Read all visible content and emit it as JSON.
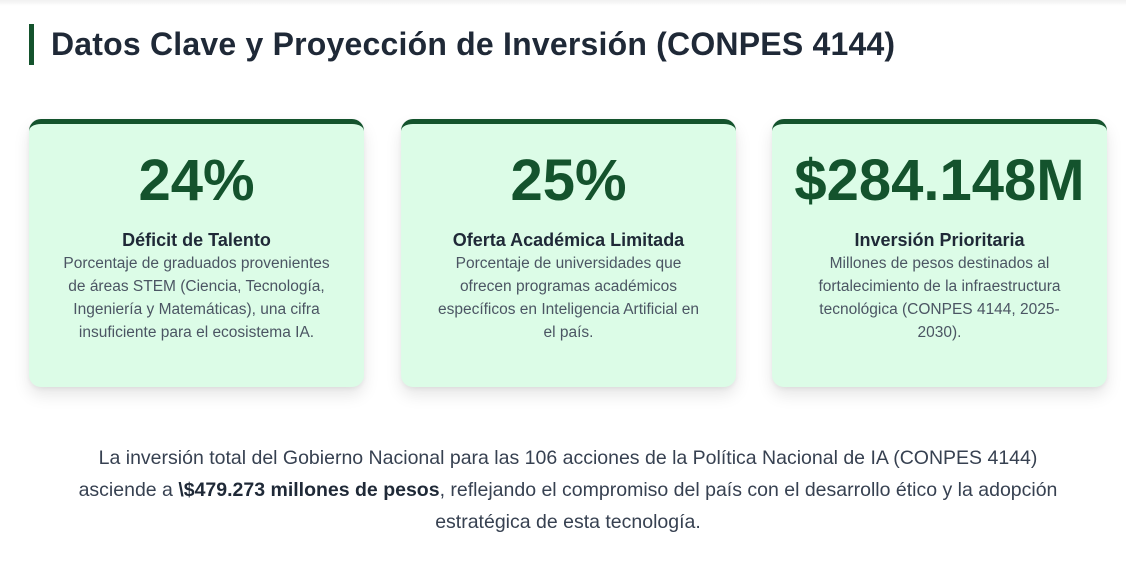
{
  "header": {
    "title": "Datos Clave y Proyección de Inversión (CONPES 4144)"
  },
  "cards": [
    {
      "value": "24%",
      "label": "Déficit de Talento",
      "description": "Porcentaje de graduados provenientes de áreas STEM (Ciencia, Tecnología, Ingeniería y Matemáticas), una cifra insuficiente para el ecosistema IA."
    },
    {
      "value": "25%",
      "label": "Oferta Académica Limitada",
      "description": "Porcentaje de universidades que ofrecen programas académicos específicos en Inteligencia Artificial en el país."
    },
    {
      "value": "$284.148M",
      "label": "Inversión Prioritaria",
      "description": "Millones de pesos destinados al fortalecimiento de la infraestructura tecnológica (CONPES 4144, 2025-2030)."
    }
  ],
  "summary": {
    "before": "La inversión total del Gobierno Nacional para las 106 acciones de la Política Nacional de IA (CONPES 4144) asciende a ",
    "highlight": "\\$479.273 millones de pesos",
    "after": ", reflejando el compromiso del país con el desarrollo ético y la adopción estratégica de esta tecnología."
  },
  "colors": {
    "accent": "#14532d",
    "card_background": "#dcfce7",
    "text_dark": "#1f2937",
    "text_muted": "#4b5563"
  }
}
